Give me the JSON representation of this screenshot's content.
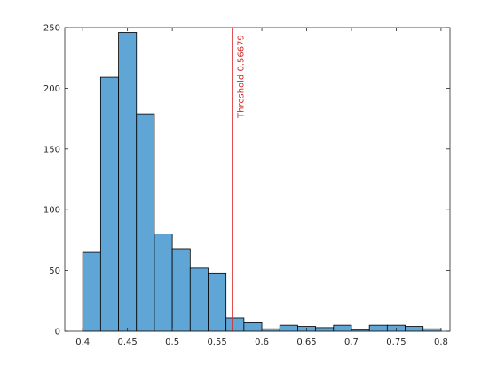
{
  "chart_data": {
    "type": "bar",
    "subtype": "histogram",
    "title": "",
    "xlabel": "",
    "ylabel": "",
    "xlim": [
      0.38,
      0.81
    ],
    "ylim": [
      0,
      250
    ],
    "bin_edges": [
      0.4,
      0.42,
      0.44,
      0.46,
      0.48,
      0.5,
      0.52,
      0.54,
      0.56,
      0.58,
      0.6,
      0.62,
      0.64,
      0.66,
      0.68,
      0.7,
      0.72,
      0.74,
      0.76,
      0.78,
      0.8
    ],
    "counts": [
      65,
      209,
      246,
      179,
      80,
      68,
      52,
      48,
      11,
      7,
      2,
      5,
      4,
      3,
      5,
      1,
      5,
      5,
      4,
      2
    ],
    "xticks": [
      0.4,
      0.45,
      0.5,
      0.55,
      0.6,
      0.65,
      0.7,
      0.75,
      0.8
    ],
    "xtick_labels": [
      "0.4",
      "0.45",
      "0.5",
      "0.55",
      "0.6",
      "0.65",
      "0.7",
      "0.75",
      "0.8"
    ],
    "yticks": [
      0,
      50,
      100,
      150,
      200,
      250
    ],
    "ytick_labels": [
      "0",
      "50",
      "100",
      "150",
      "200",
      "250"
    ],
    "grid": false,
    "bar_color": "#5fa5d6",
    "bar_edge_color": "#000000",
    "threshold": {
      "value": 0.56679,
      "label": "Threshold 0.56679",
      "color": "#d62728"
    }
  }
}
